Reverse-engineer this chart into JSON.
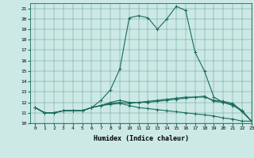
{
  "xlabel": "Humidex (Indice chaleur)",
  "xlim": [
    -0.5,
    23
  ],
  "ylim": [
    10,
    21.5
  ],
  "yticks": [
    10,
    11,
    12,
    13,
    14,
    15,
    16,
    17,
    18,
    19,
    20,
    21
  ],
  "xticks": [
    0,
    1,
    2,
    3,
    4,
    5,
    6,
    7,
    8,
    9,
    10,
    11,
    12,
    13,
    14,
    15,
    16,
    17,
    18,
    19,
    20,
    21,
    22,
    23
  ],
  "bg_color": "#cce9e5",
  "line_color": "#1a6b5e",
  "series": [
    [
      11.5,
      11.0,
      11.0,
      11.2,
      11.2,
      11.2,
      11.5,
      12.2,
      13.2,
      15.2,
      20.1,
      20.3,
      20.1,
      19.0,
      20.0,
      21.2,
      20.8,
      16.8,
      15.0,
      12.5,
      12.0,
      11.8,
      11.1,
      10.2
    ],
    [
      11.5,
      11.0,
      11.0,
      11.2,
      11.2,
      11.2,
      11.5,
      11.7,
      12.0,
      12.2,
      12.0,
      12.0,
      12.1,
      12.2,
      12.3,
      12.4,
      12.5,
      12.5,
      12.5,
      12.2,
      12.1,
      11.9,
      11.2,
      10.2
    ],
    [
      11.5,
      11.0,
      11.0,
      11.2,
      11.2,
      11.2,
      11.5,
      11.7,
      11.8,
      11.9,
      11.7,
      11.5,
      11.4,
      11.3,
      11.2,
      11.1,
      11.0,
      10.9,
      10.8,
      10.7,
      10.5,
      10.4,
      10.2,
      10.2
    ],
    [
      11.5,
      11.0,
      11.0,
      11.2,
      11.2,
      11.2,
      11.5,
      11.7,
      11.9,
      12.0,
      11.9,
      12.0,
      12.0,
      12.1,
      12.2,
      12.3,
      12.4,
      12.5,
      12.6,
      12.1,
      12.0,
      11.7,
      11.2,
      10.2
    ]
  ]
}
